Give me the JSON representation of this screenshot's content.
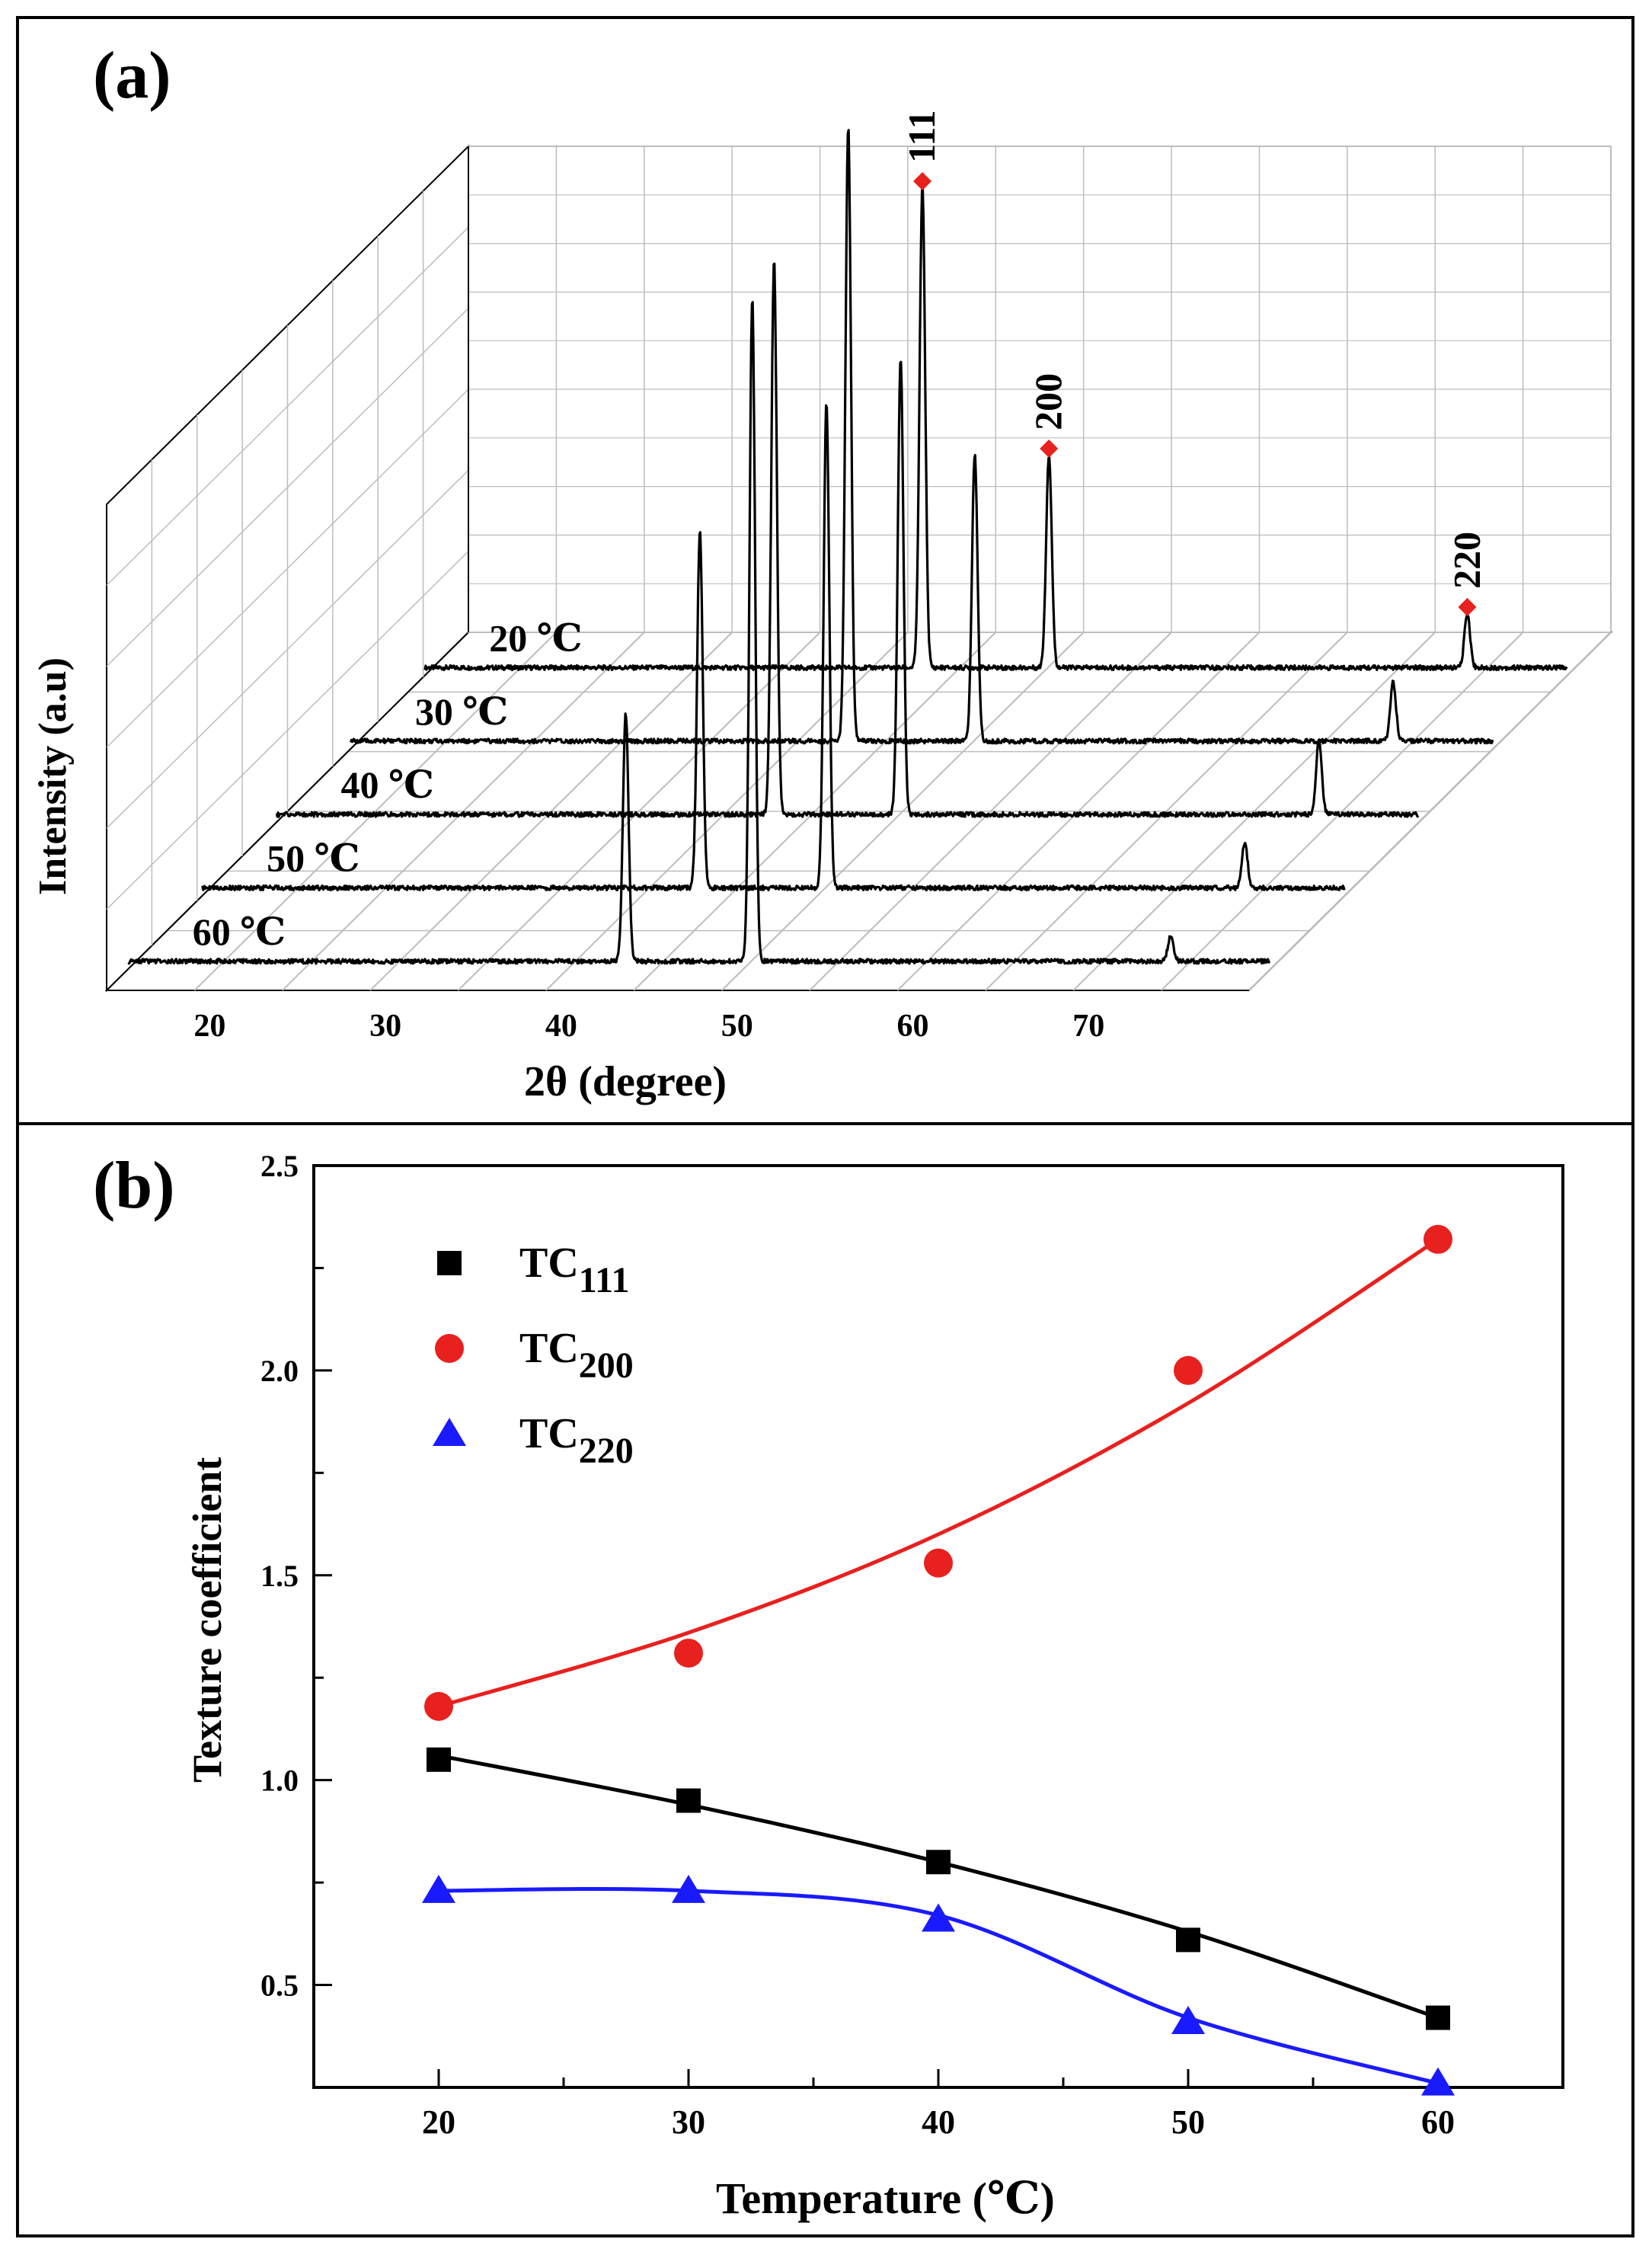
{
  "chart_data": [
    {
      "panel_label": "(a)",
      "type": "line",
      "subtype": "waterfall-3d",
      "xlabel": "2θ (degree)",
      "ylabel": "Intensity (a.u)",
      "x_ticks": [
        "20",
        "30",
        "40",
        "50",
        "60",
        "70"
      ],
      "xlim": [
        15,
        80
      ],
      "series": [
        {
          "name": "20 ℃",
          "label": "20 ℃",
          "peaks": [
            {
              "x": 43.3,
              "h": 0.97
            },
            {
              "x": 50.5,
              "h": 0.43
            },
            {
              "x": 74.3,
              "h": 0.11
            }
          ]
        },
        {
          "name": "30 ℃",
          "label": "30 ℃",
          "peaks": [
            {
              "x": 43.3,
              "h": 1.24
            },
            {
              "x": 50.5,
              "h": 0.58
            },
            {
              "x": 74.3,
              "h": 0.12
            }
          ]
        },
        {
          "name": "40 ℃",
          "label": "40 ℃",
          "peaks": [
            {
              "x": 43.3,
              "h": 1.12
            },
            {
              "x": 50.5,
              "h": 0.92
            },
            {
              "x": 74.3,
              "h": 0.15
            }
          ]
        },
        {
          "name": "50 ℃",
          "label": "50 ℃",
          "peaks": [
            {
              "x": 43.3,
              "h": 0.72
            },
            {
              "x": 50.5,
              "h": 0.98
            },
            {
              "x": 74.3,
              "h": 0.09
            }
          ]
        },
        {
          "name": "60 ℃",
          "label": "60 ℃",
          "peaks": [
            {
              "x": 43.3,
              "h": 0.5
            },
            {
              "x": 50.5,
              "h": 1.34
            },
            {
              "x": 74.3,
              "h": 0.05
            }
          ]
        }
      ],
      "annotations": [
        {
          "text": "111",
          "x": 43.3
        },
        {
          "text": "200",
          "x": 50.5
        },
        {
          "text": "220",
          "x": 74.3
        }
      ],
      "marker_color": "#e8201e"
    },
    {
      "panel_label": "(b)",
      "type": "scatter",
      "xlabel": "Temperature (℃)",
      "ylabel": "Texture coefficient",
      "xlim": [
        15,
        65
      ],
      "ylim": [
        0.25,
        2.5
      ],
      "x_ticks": [
        "20",
        "30",
        "40",
        "50",
        "60"
      ],
      "y_ticks": [
        "0.5",
        "1.0",
        "1.5",
        "2.0",
        "2.5"
      ],
      "x": [
        20,
        30,
        40,
        50,
        60
      ],
      "series": [
        {
          "name": "TC111",
          "legend_main": "TC",
          "legend_sub": "111",
          "marker": "square",
          "color": "#000000",
          "values": [
            1.05,
            0.95,
            0.8,
            0.61,
            0.42
          ]
        },
        {
          "name": "TC200",
          "legend_main": "TC",
          "legend_sub": "200",
          "marker": "circle",
          "color": "#e8201e",
          "values": [
            1.18,
            1.31,
            1.53,
            2.0,
            2.32
          ]
        },
        {
          "name": "TC220",
          "legend_main": "TC",
          "legend_sub": "220",
          "marker": "triangle",
          "color": "#1a1aff",
          "values": [
            0.73,
            0.73,
            0.66,
            0.41,
            0.26
          ]
        }
      ],
      "legend_position": "top-left"
    }
  ]
}
